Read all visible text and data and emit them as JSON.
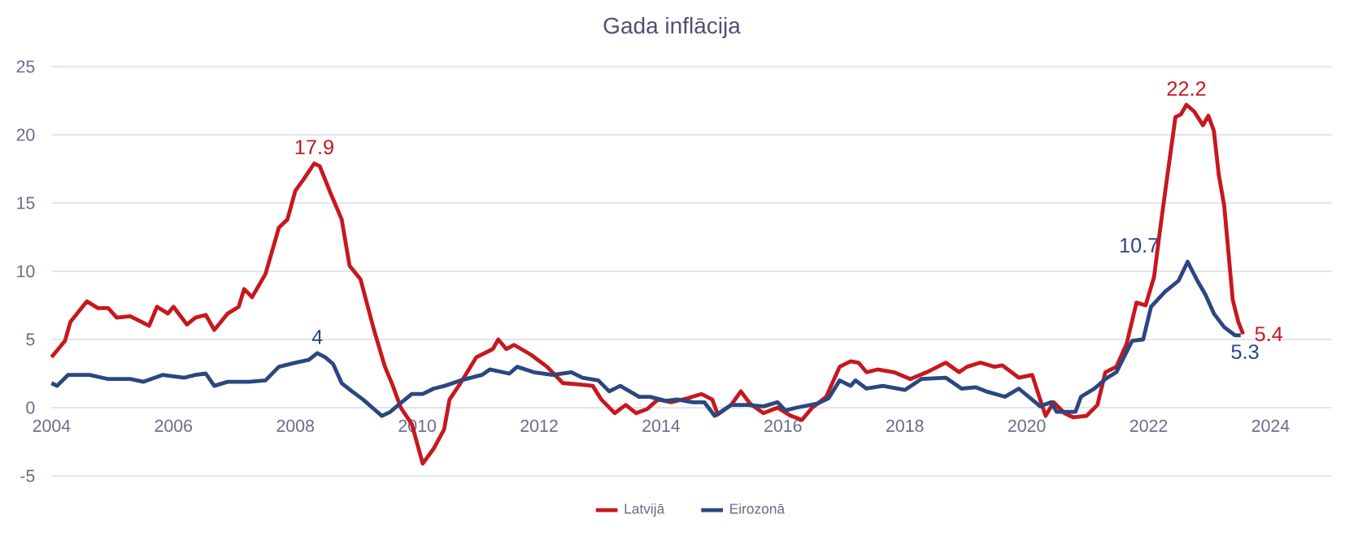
{
  "chart_data": {
    "type": "line",
    "title": "Gada inflācija",
    "xlim": [
      2004,
      2025
    ],
    "xticks": [
      2004,
      2006,
      2008,
      2010,
      2012,
      2014,
      2016,
      2018,
      2020,
      2022,
      2024
    ],
    "ylim": [
      -5,
      25
    ],
    "yticks": [
      -5,
      0,
      5,
      10,
      15,
      20,
      25
    ],
    "grid": "y",
    "legend": "bottom",
    "line_style": "solid",
    "marker": "none",
    "series": [
      {
        "name": "Latvijā",
        "color": "#c8171e",
        "x": [
          2004.0,
          2004.22,
          2004.31,
          2004.58,
          2004.76,
          2004.93,
          2005.07,
          2005.29,
          2005.47,
          2005.6,
          2005.73,
          2005.91,
          2006.0,
          2006.22,
          2006.36,
          2006.53,
          2006.67,
          2006.89,
          2007.07,
          2007.16,
          2007.29,
          2007.51,
          2007.73,
          2007.87,
          2008.0,
          2008.13,
          2008.31,
          2008.4,
          2008.58,
          2008.76,
          2008.89,
          2009.07,
          2009.29,
          2009.47,
          2009.6,
          2009.73,
          2009.91,
          2010.09,
          2010.27,
          2010.44,
          2010.53,
          2010.71,
          2010.97,
          2011.24,
          2011.33,
          2011.46,
          2011.59,
          2011.86,
          2012.13,
          2012.39,
          2012.66,
          2012.88,
          2013.02,
          2013.24,
          2013.42,
          2013.59,
          2013.77,
          2013.95,
          2014.17,
          2014.44,
          2014.66,
          2014.84,
          2014.93,
          2015.15,
          2015.31,
          2015.46,
          2015.68,
          2015.91,
          2016.13,
          2016.31,
          2016.48,
          2016.71,
          2016.93,
          2017.11,
          2017.24,
          2017.37,
          2017.55,
          2017.82,
          2018.09,
          2018.36,
          2018.67,
          2018.89,
          2019.02,
          2019.24,
          2019.47,
          2019.6,
          2019.87,
          2020.09,
          2020.22,
          2020.31,
          2020.44,
          2020.62,
          2020.76,
          2020.98,
          2021.16,
          2021.29,
          2021.47,
          2021.64,
          2021.8,
          2021.95,
          2022.09,
          2022.18,
          2022.31,
          2022.44,
          2022.53,
          2022.62,
          2022.75,
          2022.89,
          2022.98,
          2023.07,
          2023.15,
          2023.24,
          2023.38,
          2023.47,
          2023.55
        ],
        "values": [
          3.7,
          4.9,
          6.3,
          7.8,
          7.3,
          7.3,
          6.6,
          6.7,
          6.3,
          6.0,
          7.4,
          6.9,
          7.4,
          6.1,
          6.6,
          6.8,
          5.7,
          6.9,
          7.4,
          8.7,
          8.1,
          9.8,
          13.2,
          13.8,
          15.9,
          16.7,
          17.9,
          17.7,
          15.7,
          13.8,
          10.4,
          9.4,
          5.7,
          3.0,
          1.6,
          0,
          -1.2,
          -4.1,
          -3.0,
          -1.6,
          0.6,
          1.8,
          3.7,
          4.3,
          5.0,
          4.3,
          4.6,
          3.9,
          3.0,
          1.8,
          1.7,
          1.6,
          0.6,
          -0.4,
          0.2,
          -0.4,
          -0.1,
          0.6,
          0.4,
          0.7,
          1.0,
          0.6,
          -0.5,
          0.2,
          1.2,
          0.3,
          -0.4,
          0,
          -0.6,
          -0.9,
          0,
          0.8,
          3.0,
          3.4,
          3.3,
          2.6,
          2.8,
          2.6,
          2.1,
          2.6,
          3.3,
          2.6,
          3.0,
          3.3,
          3.0,
          3.1,
          2.2,
          2.4,
          0.6,
          -0.6,
          0.4,
          -0.4,
          -0.7,
          -0.6,
          0.2,
          2.6,
          3.0,
          4.7,
          7.7,
          7.5,
          9.6,
          12.8,
          17.1,
          21.3,
          21.5,
          22.2,
          21.7,
          20.7,
          21.4,
          20.3,
          17.1,
          14.8,
          7.9,
          6.3,
          5.4
        ]
      },
      {
        "name": "Eirozonā",
        "color": "#2b4780",
        "x": [
          2004.0,
          2004.09,
          2004.27,
          2004.49,
          2004.62,
          2004.93,
          2005.29,
          2005.51,
          2005.82,
          2006.18,
          2006.36,
          2006.53,
          2006.67,
          2006.89,
          2007.24,
          2007.51,
          2007.73,
          2008.0,
          2008.22,
          2008.36,
          2008.49,
          2008.62,
          2008.76,
          2008.93,
          2009.11,
          2009.29,
          2009.42,
          2009.56,
          2009.69,
          2009.91,
          2010.09,
          2010.27,
          2010.45,
          2010.71,
          2011.06,
          2011.19,
          2011.51,
          2011.64,
          2011.91,
          2012.22,
          2012.53,
          2012.71,
          2012.97,
          2013.15,
          2013.33,
          2013.64,
          2013.82,
          2014.08,
          2014.26,
          2014.53,
          2014.71,
          2014.88,
          2015.15,
          2015.42,
          2015.68,
          2015.91,
          2016.04,
          2016.22,
          2016.57,
          2016.75,
          2016.93,
          2017.11,
          2017.19,
          2017.37,
          2017.64,
          2018.0,
          2018.27,
          2018.67,
          2018.93,
          2019.16,
          2019.33,
          2019.64,
          2019.87,
          2020.22,
          2020.4,
          2020.49,
          2020.8,
          2020.89,
          2021.11,
          2021.29,
          2021.47,
          2021.73,
          2021.91,
          2022.04,
          2022.27,
          2022.49,
          2022.64,
          2022.8,
          2022.93,
          2023.07,
          2023.24,
          2023.42,
          2023.51
        ],
        "values": [
          1.8,
          1.6,
          2.4,
          2.4,
          2.4,
          2.1,
          2.1,
          1.9,
          2.4,
          2.2,
          2.4,
          2.5,
          1.6,
          1.9,
          1.9,
          2.0,
          3.0,
          3.3,
          3.5,
          4.0,
          3.7,
          3.2,
          1.8,
          1.2,
          0.6,
          -0.1,
          -0.6,
          -0.3,
          0.2,
          1.0,
          1.0,
          1.4,
          1.6,
          2.0,
          2.4,
          2.8,
          2.5,
          3.0,
          2.6,
          2.4,
          2.6,
          2.2,
          2.0,
          1.2,
          1.6,
          0.8,
          0.8,
          0.5,
          0.6,
          0.4,
          0.4,
          -0.6,
          0.2,
          0.2,
          0.1,
          0.4,
          -0.2,
          0,
          0.3,
          0.7,
          2.0,
          1.6,
          2.0,
          1.4,
          1.6,
          1.3,
          2.1,
          2.2,
          1.4,
          1.5,
          1.2,
          0.8,
          1.4,
          0.1,
          0.4,
          -0.3,
          -0.3,
          0.8,
          1.4,
          2.1,
          2.6,
          4.9,
          5.0,
          7.4,
          8.5,
          9.3,
          10.7,
          9.3,
          8.3,
          6.9,
          5.9,
          5.3,
          5.3
        ]
      }
    ],
    "annotations": [
      {
        "text": "17.9",
        "x": 2008.31,
        "y": 17.9
      },
      {
        "text": "4",
        "x": 2008.36,
        "y": 4.0
      },
      {
        "text": "22.2",
        "x": 2022.62,
        "y": 22.2
      },
      {
        "text": "10.7",
        "x": 2022.64,
        "y": 10.7
      },
      {
        "text": "5.4",
        "x": 2023.55,
        "y": 5.4
      },
      {
        "text": "5.3",
        "x": 2023.51,
        "y": 5.3
      }
    ]
  }
}
